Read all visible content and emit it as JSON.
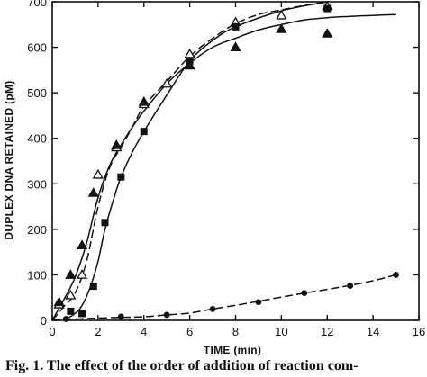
{
  "caption": "Fig. 1. The effect of the order of addition of reaction com-",
  "chart_data": {
    "type": "scatter",
    "title": "",
    "xlabel": "TIME (min)",
    "ylabel": "DUPLEX DNA RETAINED (pM)",
    "xlim": [
      0,
      16
    ],
    "ylim": [
      0,
      700
    ],
    "xticks": [
      0,
      2,
      4,
      6,
      8,
      10,
      12,
      14,
      16
    ],
    "yticks": [
      0,
      100,
      200,
      300,
      400,
      500,
      600,
      700
    ],
    "grid": false,
    "legend": "none",
    "series": [
      {
        "marker": "triangle-open",
        "line": "dashed",
        "color": "#111111",
        "points": [
          [
            0.3,
            35
          ],
          [
            0.8,
            55
          ],
          [
            1.3,
            100
          ],
          [
            2.0,
            320
          ],
          [
            2.8,
            380
          ],
          [
            4.0,
            475
          ],
          [
            5.0,
            520
          ],
          [
            6.0,
            585
          ],
          [
            8.0,
            655
          ],
          [
            10.0,
            670
          ],
          [
            12.0,
            690
          ]
        ],
        "curve": [
          [
            0,
            0
          ],
          [
            0.5,
            30
          ],
          [
            1,
            60
          ],
          [
            1.5,
            130
          ],
          [
            2,
            250
          ],
          [
            2.5,
            335
          ],
          [
            3,
            380
          ],
          [
            3.5,
            425
          ],
          [
            4,
            470
          ],
          [
            5,
            525
          ],
          [
            6,
            580
          ],
          [
            7,
            620
          ],
          [
            8,
            652
          ],
          [
            9,
            672
          ],
          [
            10,
            682
          ],
          [
            11,
            692
          ],
          [
            12,
            700
          ]
        ]
      },
      {
        "marker": "triangle-filled",
        "line": "solid",
        "color": "#111111",
        "points": [
          [
            0.3,
            40
          ],
          [
            0.8,
            100
          ],
          [
            1.3,
            165
          ],
          [
            1.8,
            280
          ],
          [
            2.8,
            385
          ],
          [
            4.0,
            480
          ],
          [
            6.0,
            560
          ],
          [
            8.0,
            600
          ],
          [
            10.0,
            640
          ],
          [
            12.0,
            630
          ]
        ],
        "curve": [
          [
            0,
            0
          ],
          [
            0.5,
            45
          ],
          [
            1,
            95
          ],
          [
            1.5,
            170
          ],
          [
            2,
            270
          ],
          [
            2.5,
            340
          ],
          [
            3,
            385
          ],
          [
            3.5,
            425
          ],
          [
            4,
            460
          ],
          [
            5,
            520
          ],
          [
            6,
            565
          ],
          [
            7,
            600
          ],
          [
            8,
            620
          ],
          [
            9,
            638
          ],
          [
            10,
            650
          ],
          [
            11,
            660
          ],
          [
            12,
            665
          ],
          [
            13,
            668
          ],
          [
            14,
            670
          ],
          [
            15,
            672
          ]
        ]
      },
      {
        "marker": "square-filled",
        "line": "solid",
        "color": "#111111",
        "points": [
          [
            0.8,
            20
          ],
          [
            1.3,
            15
          ],
          [
            1.8,
            75
          ],
          [
            2.3,
            215
          ],
          [
            3.0,
            315
          ],
          [
            4.0,
            415
          ],
          [
            6.0,
            570
          ],
          [
            8.0,
            645
          ],
          [
            12.0,
            685
          ]
        ],
        "curve": [
          [
            0.7,
            5
          ],
          [
            1.2,
            25
          ],
          [
            1.6,
            65
          ],
          [
            2,
            130
          ],
          [
            2.3,
            200
          ],
          [
            2.7,
            270
          ],
          [
            3,
            315
          ],
          [
            3.5,
            370
          ],
          [
            4,
            415
          ],
          [
            5,
            495
          ],
          [
            6,
            570
          ],
          [
            7,
            615
          ],
          [
            8,
            645
          ],
          [
            10,
            680
          ],
          [
            12,
            700
          ]
        ]
      },
      {
        "marker": "circle-filled",
        "line": "dashed",
        "color": "#111111",
        "points": [
          [
            0.6,
            3
          ],
          [
            3.0,
            8
          ],
          [
            5.0,
            12
          ],
          [
            7.0,
            25
          ],
          [
            9.0,
            40
          ],
          [
            11.0,
            60
          ],
          [
            13.0,
            76
          ],
          [
            15.0,
            100
          ]
        ],
        "curve": [
          [
            0,
            0
          ],
          [
            2,
            5
          ],
          [
            4,
            8
          ],
          [
            5,
            12
          ],
          [
            6,
            16
          ],
          [
            7,
            25
          ],
          [
            8,
            33
          ],
          [
            9,
            42
          ],
          [
            10,
            51
          ],
          [
            11,
            60
          ],
          [
            12,
            68
          ],
          [
            13,
            77
          ],
          [
            14,
            87
          ],
          [
            15,
            100
          ]
        ]
      }
    ]
  }
}
